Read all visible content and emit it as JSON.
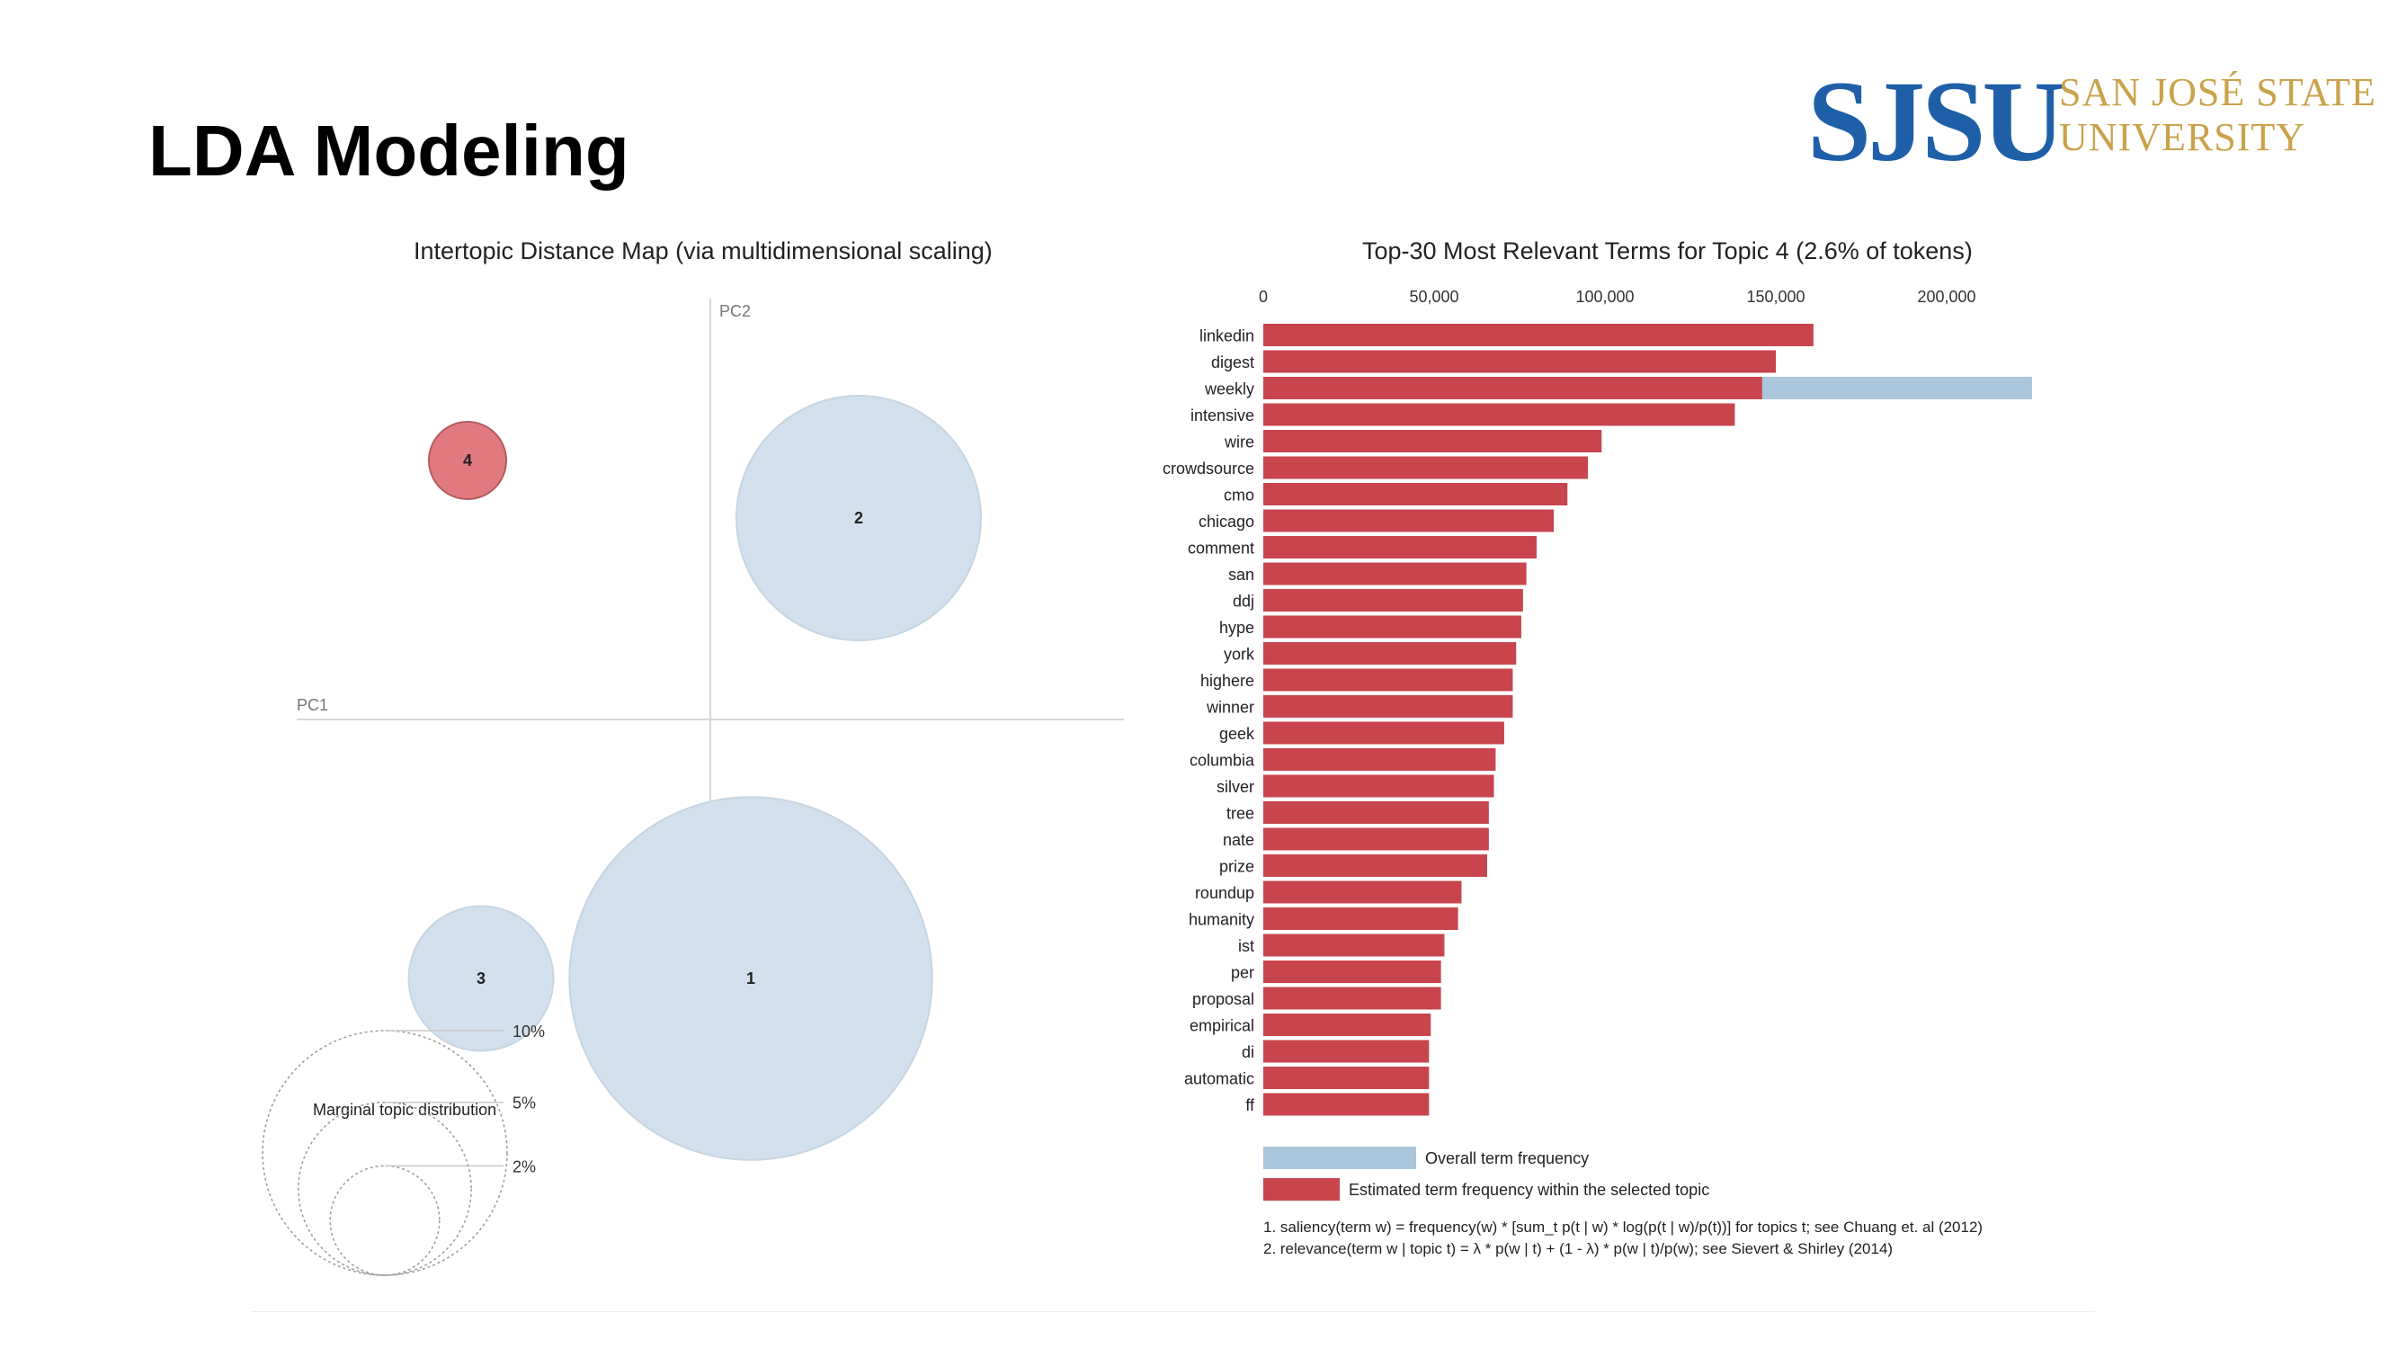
{
  "slide": {
    "title": "LDA Modeling"
  },
  "logo": {
    "mark": "SJSU",
    "line1": "SAN JOSÉ STATE",
    "line2": "UNIVERSITY",
    "mark_color": "#1f5fa8",
    "text_color": "#c9a24a"
  },
  "chart_data": [
    {
      "type": "scatter",
      "title": "Intertopic Distance Map (via multidimensional scaling)",
      "xlabel": "PC1",
      "ylabel": "PC2",
      "points": [
        {
          "topic": "1",
          "x": 0.15,
          "y": -0.45,
          "size_pct": 22,
          "color": "#d1e0ec"
        },
        {
          "topic": "2",
          "x": 0.55,
          "y": 0.35,
          "size_pct": 10,
          "color": "#d1e0ec"
        },
        {
          "topic": "3",
          "x": -0.85,
          "y": -0.45,
          "size_pct": 3.5,
          "color": "#d1e0ec"
        },
        {
          "topic": "4",
          "x": -0.9,
          "y": 0.45,
          "size_pct": 1,
          "color": "#e07a7f"
        }
      ],
      "legend": {
        "title": "Marginal topic distribution",
        "sizes": [
          "2%",
          "5%",
          "10%"
        ]
      }
    },
    {
      "type": "bar",
      "title": "Top-30 Most Relevant Terms for Topic 4 (2.6% of tokens)",
      "xlim": [
        0,
        225000
      ],
      "x_ticks": [
        0,
        50000,
        100000,
        150000,
        200000
      ],
      "x_tick_labels": [
        "0",
        "50,000",
        "100,000",
        "150,000",
        "200,000"
      ],
      "categories": [
        "linkedin",
        "digest",
        "weekly",
        "intensive",
        "wire",
        "crowdsource",
        "cmo",
        "chicago",
        "comment",
        "san",
        "ddj",
        "hype",
        "york",
        "highere",
        "winner",
        "geek",
        "columbia",
        "silver",
        "tree",
        "nate",
        "prize",
        "roundup",
        "humanity",
        "ist",
        "per",
        "proposal",
        "empirical",
        "di",
        "automatic",
        "ff"
      ],
      "series": [
        {
          "name": "Overall term frequency",
          "color": "#a9c6dd",
          "values": [
            161000,
            150000,
            225000,
            138000,
            99000,
            95000,
            89000,
            85000,
            80000,
            77000,
            76000,
            75500,
            74000,
            73000,
            73000,
            70500,
            68000,
            67500,
            66000,
            66000,
            65500,
            58000,
            57000,
            53000,
            52000,
            52000,
            49000,
            48500,
            48500,
            48500
          ]
        },
        {
          "name": "Estimated term frequency within the selected topic",
          "color": "#c8454e",
          "values": [
            161000,
            150000,
            146000,
            138000,
            99000,
            95000,
            89000,
            85000,
            80000,
            77000,
            76000,
            75500,
            74000,
            73000,
            73000,
            70500,
            68000,
            67500,
            66000,
            66000,
            65500,
            58000,
            57000,
            53000,
            52000,
            52000,
            49000,
            48500,
            48500,
            48500
          ]
        }
      ],
      "footnotes": [
        "1. saliency(term w) = frequency(w) * [sum_t p(t | w) * log(p(t | w)/p(t))] for topics t; see Chuang et. al (2012)",
        "2. relevance(term w | topic t) = λ * p(w | t) + (1 - λ) * p(w | t)/p(w); see Sievert & Shirley (2014)"
      ]
    }
  ]
}
